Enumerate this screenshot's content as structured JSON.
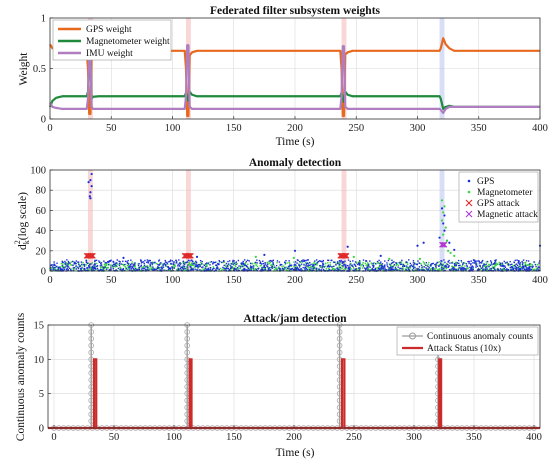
{
  "chart_data": [
    {
      "type": "line",
      "title": "Federated filter subsystem weights",
      "xlabel": "Time (s)",
      "ylabel": "Weight",
      "xlim": [
        0,
        400
      ],
      "ylim": [
        0,
        1
      ],
      "xticks": [
        0,
        50,
        100,
        150,
        200,
        250,
        300,
        350,
        400
      ],
      "yticks": [
        0,
        0.5,
        1
      ],
      "grid": true,
      "legend": "top-left",
      "attack_windows": [
        {
          "start": 31,
          "end": 35,
          "type": "GPS"
        },
        {
          "start": 111,
          "end": 115,
          "type": "GPS"
        },
        {
          "start": 238,
          "end": 242,
          "type": "GPS"
        },
        {
          "start": 318,
          "end": 322,
          "type": "Magnetic"
        }
      ],
      "series": [
        {
          "name": "GPS weight",
          "color": "#e8691e",
          "points": [
            [
              0,
              0.74
            ],
            [
              2,
              0.7
            ],
            [
              5,
              0.68
            ],
            [
              10,
              0.675
            ],
            [
              30,
              0.675
            ],
            [
              31,
              0.5
            ],
            [
              32,
              0.05
            ],
            [
              33,
              0.05
            ],
            [
              34,
              0.64
            ],
            [
              35,
              0.66
            ],
            [
              40,
              0.675
            ],
            [
              110,
              0.675
            ],
            [
              111,
              0.5
            ],
            [
              112,
              0.03
            ],
            [
              113,
              0.03
            ],
            [
              114,
              0.63
            ],
            [
              116,
              0.66
            ],
            [
              120,
              0.675
            ],
            [
              237,
              0.675
            ],
            [
              238,
              0.5
            ],
            [
              239,
              0.03
            ],
            [
              240,
              0.03
            ],
            [
              241,
              0.64
            ],
            [
              243,
              0.66
            ],
            [
              247,
              0.675
            ],
            [
              318,
              0.675
            ],
            [
              319,
              0.7
            ],
            [
              321,
              0.8
            ],
            [
              323,
              0.74
            ],
            [
              326,
              0.7
            ],
            [
              330,
              0.675
            ],
            [
              400,
              0.675
            ]
          ]
        },
        {
          "name": "Magnetometer weight",
          "color": "#1f8a3c",
          "points": [
            [
              0,
              0.12
            ],
            [
              2,
              0.18
            ],
            [
              5,
              0.21
            ],
            [
              10,
              0.225
            ],
            [
              30,
              0.225
            ],
            [
              31,
              0.27
            ],
            [
              33,
              0.7
            ],
            [
              34,
              0.2
            ],
            [
              35,
              0.22
            ],
            [
              40,
              0.225
            ],
            [
              110,
              0.225
            ],
            [
              111,
              0.26
            ],
            [
              113,
              0.18
            ],
            [
              114,
              0.27
            ],
            [
              116,
              0.24
            ],
            [
              120,
              0.225
            ],
            [
              237,
              0.225
            ],
            [
              238,
              0.26
            ],
            [
              240,
              0.17
            ],
            [
              241,
              0.27
            ],
            [
              243,
              0.24
            ],
            [
              247,
              0.225
            ],
            [
              318,
              0.225
            ],
            [
              319,
              0.2
            ],
            [
              321,
              0.1
            ],
            [
              323,
              0.12
            ],
            [
              326,
              0.13
            ],
            [
              330,
              0.12
            ],
            [
              400,
              0.12
            ]
          ]
        },
        {
          "name": "IMU weight",
          "color": "#b07ec0",
          "points": [
            [
              0,
              0.16
            ],
            [
              2,
              0.12
            ],
            [
              5,
              0.11
            ],
            [
              10,
              0.1
            ],
            [
              30,
              0.1
            ],
            [
              31,
              0.2
            ],
            [
              32,
              0.68
            ],
            [
              33,
              0.66
            ],
            [
              34,
              0.12
            ],
            [
              35,
              0.1
            ],
            [
              110,
              0.1
            ],
            [
              111,
              0.22
            ],
            [
              112,
              0.73
            ],
            [
              113,
              0.73
            ],
            [
              114,
              0.12
            ],
            [
              116,
              0.1
            ],
            [
              237,
              0.1
            ],
            [
              238,
              0.22
            ],
            [
              239,
              0.72
            ],
            [
              240,
              0.72
            ],
            [
              241,
              0.12
            ],
            [
              243,
              0.1
            ],
            [
              318,
              0.1
            ],
            [
              319,
              0.09
            ],
            [
              321,
              0.06
            ],
            [
              323,
              0.1
            ],
            [
              326,
              0.12
            ],
            [
              330,
              0.12
            ],
            [
              400,
              0.12
            ]
          ]
        }
      ]
    },
    {
      "type": "scatter",
      "title": "Anomaly detection",
      "xlabel": "",
      "ylabel_main": "d",
      "ylabel_sup": "2",
      "ylabel_sub": "k",
      "ylabel_rest": "(log scale)",
      "xlim": [
        0,
        400
      ],
      "ylim": [
        0,
        100
      ],
      "xticks": [
        0,
        50,
        100,
        150,
        200,
        250,
        300,
        350,
        400
      ],
      "yticks": [
        0,
        20,
        40,
        60,
        80,
        100
      ],
      "grid": true,
      "legend": "top-right",
      "series": [
        {
          "name": "GPS",
          "color": "#1c2fd6",
          "marker": "dot",
          "points": [
            [
              33,
              72
            ],
            [
              33,
              78
            ],
            [
              34,
              84
            ],
            [
              33,
              90
            ],
            [
              34,
              96
            ],
            [
              31.5,
              88
            ],
            [
              32.5,
              74
            ],
            [
              320,
              62
            ],
            [
              322,
              55
            ],
            [
              321,
              47
            ],
            [
              318,
              33
            ],
            [
              326,
              28
            ],
            [
              305,
              28
            ],
            [
              300,
              25
            ],
            [
              400,
              25
            ],
            [
              243,
              24
            ],
            [
              200,
              20
            ],
            [
              175,
              16
            ],
            [
              120,
              14
            ],
            [
              60,
              13
            ],
            [
              270,
              15
            ],
            [
              330,
              21
            ],
            [
              324,
              30
            ],
            [
              322,
              40
            ]
          ],
          "noise_band": [
            0,
            11
          ]
        },
        {
          "name": "Magnetometer",
          "color": "#39d43e",
          "marker": "dot",
          "points": [
            [
              320,
              70
            ],
            [
              322,
              64
            ],
            [
              321,
              58
            ],
            [
              320,
              50
            ],
            [
              323,
              43
            ],
            [
              321,
              36
            ],
            [
              324,
              30
            ],
            [
              322,
              25
            ],
            [
              325,
              20
            ],
            [
              327,
              18
            ],
            [
              330,
              15
            ],
            [
              168,
              14
            ],
            [
              199,
              13
            ],
            [
              248,
              14
            ],
            [
              277,
              12
            ],
            [
              302,
              12
            ]
          ],
          "noise_band": [
            0,
            9
          ]
        },
        {
          "name": "GPS attack",
          "color": "#e02a2a",
          "marker": "x",
          "points": [
            [
              30,
              15
            ],
            [
              31,
              15
            ],
            [
              32,
              15
            ],
            [
              33,
              15
            ],
            [
              34,
              15
            ],
            [
              35,
              15
            ],
            [
              110,
              15
            ],
            [
              111,
              15
            ],
            [
              112,
              15
            ],
            [
              113,
              15
            ],
            [
              114,
              15
            ],
            [
              115,
              15
            ],
            [
              237,
              15
            ],
            [
              238,
              15
            ],
            [
              239,
              15
            ],
            [
              240,
              15
            ],
            [
              241,
              15
            ],
            [
              242,
              15
            ]
          ]
        },
        {
          "name": "Magnetic attack",
          "color": "#b03ad0",
          "marker": "x",
          "points": [
            [
              320,
              26
            ],
            [
              321,
              26
            ],
            [
              322,
              26
            ]
          ]
        }
      ]
    },
    {
      "type": "line",
      "title": "Attack/jam detection",
      "xlabel": "Time (s)",
      "ylabel": "Continuous anomaly counts",
      "xlim": [
        -5,
        405
      ],
      "ylim": [
        0,
        15
      ],
      "xticks": [
        0,
        50,
        100,
        150,
        200,
        250,
        300,
        350,
        400
      ],
      "yticks": [
        0,
        5,
        10,
        15
      ],
      "grid": true,
      "legend": "top-right",
      "series": [
        {
          "name": "Continuous anomaly counts",
          "color": "#9a9a9a",
          "marker": "circle",
          "bursts": [
            {
              "x": 31,
              "peak": 15,
              "stems": [
                31,
                31.4,
                31.8,
                32.2,
                32.6,
                33,
                33.4
              ]
            },
            {
              "x": 111,
              "peak": 15,
              "stems": [
                111,
                111.4,
                111.8,
                112.2,
                112.6,
                113
              ]
            },
            {
              "x": 238,
              "peak": 15,
              "stems": [
                238,
                238.4,
                238.8,
                239.2,
                239.6,
                240
              ]
            },
            {
              "x": 320,
              "peak": 11,
              "stems": [
                320,
                320.4,
                320.8,
                321.2
              ]
            }
          ]
        },
        {
          "name": "Attack Status (10x)",
          "color": "#cc2b2b",
          "points": [
            [
              -5,
              0
            ],
            [
              33.3,
              0
            ],
            [
              33.3,
              10
            ],
            [
              35.2,
              10
            ],
            [
              35.2,
              0
            ],
            [
              113,
              0
            ],
            [
              113,
              10
            ],
            [
              114.6,
              10
            ],
            [
              114.6,
              0
            ],
            [
              240,
              0
            ],
            [
              240,
              10
            ],
            [
              242,
              10
            ],
            [
              242,
              0
            ],
            [
              321,
              0
            ],
            [
              321,
              10
            ],
            [
              322.6,
              10
            ],
            [
              322.6,
              0
            ],
            [
              405,
              0
            ]
          ]
        }
      ]
    }
  ]
}
